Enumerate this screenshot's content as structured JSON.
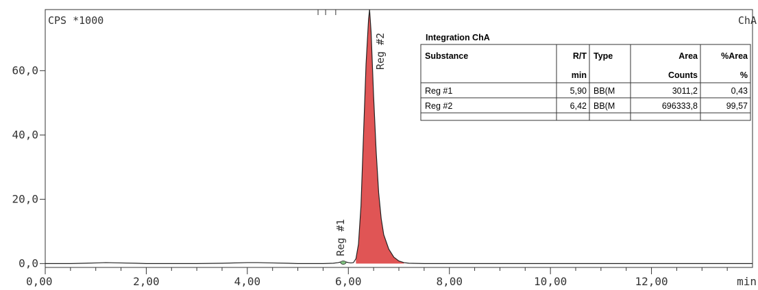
{
  "chart_data": {
    "type": "line",
    "y_unit_label": "CPS *1000",
    "x_unit_label": "min",
    "channel_label": "ChA",
    "xlim": [
      0,
      14.0
    ],
    "ylim": [
      -1.2,
      79
    ],
    "x_tick_labels": [
      "0,00",
      "2,00",
      "4,00",
      "6,00",
      "8,00",
      "10,00",
      "12,00"
    ],
    "x_tick_values": [
      0,
      2,
      4,
      6,
      8,
      10,
      12
    ],
    "y_tick_labels": [
      "0,0",
      "20,0",
      "40,0",
      "60,0"
    ],
    "y_tick_values": [
      0,
      20,
      40,
      60
    ],
    "fill_color": "#e05555",
    "line_color": "#222222",
    "series": [
      {
        "x": [
          0.0,
          0.5,
          1.0,
          1.2,
          1.5,
          1.8,
          2.0,
          2.5,
          3.0,
          3.5,
          4.0,
          4.2,
          4.5,
          4.8,
          5.0,
          5.3,
          5.5,
          5.7,
          5.8,
          5.85,
          5.9,
          5.95,
          6.0,
          6.05,
          6.1,
          6.15,
          6.2,
          6.25,
          6.3,
          6.35,
          6.4,
          6.42,
          6.45,
          6.5,
          6.55,
          6.6,
          6.65,
          6.7,
          6.8,
          6.9,
          7.0,
          7.1,
          7.2,
          7.5,
          8.0,
          8.5,
          9.0,
          9.5,
          10.0,
          10.5,
          11.0,
          11.5,
          12.0,
          12.5,
          13.0,
          14.0
        ],
        "y": [
          0.0,
          0.0,
          0.2,
          0.3,
          0.2,
          0.1,
          0.0,
          0.0,
          0.0,
          0.1,
          0.3,
          0.3,
          0.2,
          0.1,
          0.0,
          0.0,
          0.0,
          0.1,
          0.3,
          0.5,
          0.6,
          0.5,
          0.3,
          0.2,
          0.3,
          1.5,
          6.0,
          18.0,
          40.0,
          62.0,
          76.0,
          79.0,
          72.0,
          52.0,
          35.0,
          22.0,
          14.0,
          9.0,
          4.5,
          2.0,
          0.8,
          0.3,
          0.1,
          0.0,
          0.0,
          0.0,
          0.0,
          0.0,
          0.0,
          0.0,
          0.0,
          0.0,
          0.0,
          0.0,
          0.0,
          0.0
        ]
      }
    ],
    "peaks": [
      {
        "label": "Reg #1",
        "rt": 5.9,
        "marker_y": 0.6
      },
      {
        "label": "Reg #2",
        "rt": 6.42,
        "marker_y": 79.0
      }
    ],
    "table": {
      "title": "Integration ChA",
      "headers": [
        "Substance",
        "R/T",
        "Type",
        "Area",
        "%Area"
      ],
      "units": [
        "",
        "min",
        "",
        "Counts",
        "%"
      ],
      "rows": [
        [
          "Reg #1",
          "5,90",
          "BB(M",
          "3011,2",
          "0,43"
        ],
        [
          "Reg #2",
          "6,42",
          "BB(M",
          "696333,8",
          "99,57"
        ]
      ]
    }
  }
}
